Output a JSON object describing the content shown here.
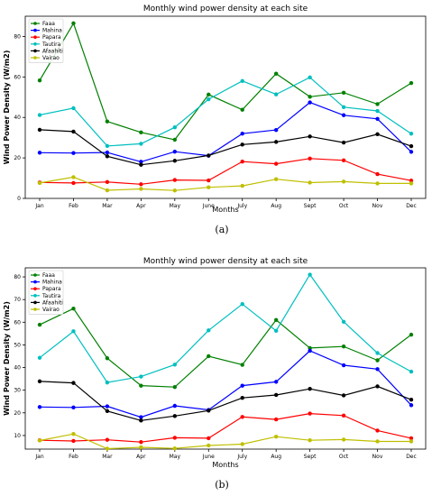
{
  "captions": [
    "(a)",
    "(b)"
  ],
  "chart_data": [
    {
      "type": "line",
      "title": "Monthly wind power density at each site",
      "xlabel": "Months",
      "ylabel": "Wind Power Density (W/m2)",
      "categories": [
        "Jan",
        "Feb",
        "Mar",
        "Apr",
        "May",
        "June",
        "July",
        "Aug",
        "Sept",
        "Oct",
        "Nov",
        "Dec"
      ],
      "ylim": [
        0,
        90
      ],
      "yticks": [
        0,
        20,
        40,
        60,
        80
      ],
      "legend_position": "top-left",
      "grid": false,
      "series": [
        {
          "name": "Faaa",
          "color": "#008000",
          "values": [
            58.3,
            86.5,
            38.0,
            32.6,
            29.0,
            51.3,
            43.8,
            61.6,
            50.2,
            52.2,
            46.6,
            57.0
          ]
        },
        {
          "name": "Mahina",
          "color": "#0000ff",
          "values": [
            22.6,
            22.4,
            22.7,
            18.1,
            23.1,
            21.1,
            32.0,
            33.8,
            47.4,
            41.1,
            39.3,
            23.0
          ]
        },
        {
          "name": "Papara",
          "color": "#ff0000",
          "values": [
            7.9,
            7.6,
            8.1,
            7.0,
            9.1,
            8.9,
            18.2,
            17.1,
            19.7,
            18.8,
            12.0,
            8.8
          ]
        },
        {
          "name": "Tautira",
          "color": "#00bfbf",
          "values": [
            41.2,
            44.6,
            25.9,
            27.0,
            35.1,
            49.0,
            58.0,
            51.4,
            59.8,
            45.1,
            43.2,
            32.0
          ]
        },
        {
          "name": "Afaahiti",
          "color": "#000000",
          "values": [
            33.9,
            33.0,
            20.8,
            16.6,
            18.6,
            21.2,
            26.6,
            27.9,
            30.6,
            27.6,
            31.7,
            25.8
          ]
        },
        {
          "name": "Vairao",
          "color": "#bfbf00",
          "values": [
            7.6,
            10.5,
            4.0,
            4.7,
            3.9,
            5.5,
            6.2,
            9.5,
            7.8,
            8.3,
            7.4,
            7.4
          ]
        }
      ]
    },
    {
      "type": "line",
      "title": "Monthly wind power density at each site",
      "xlabel": "Months",
      "ylabel": "Wind Power Density (W/m2)",
      "categories": [
        "Jan",
        "Feb",
        "Mar",
        "Apr",
        "May",
        "June",
        "July",
        "Aug",
        "Sept",
        "Oct",
        "Nov",
        "Dec"
      ],
      "ylim": [
        4,
        84
      ],
      "yticks": [
        10,
        20,
        30,
        40,
        50,
        60,
        70,
        80
      ],
      "legend_position": "top-left",
      "grid": false,
      "series": [
        {
          "name": "Faaa",
          "color": "#008000",
          "values": [
            58.9,
            66.0,
            44.1,
            32.0,
            31.4,
            45.0,
            41.2,
            61.0,
            48.6,
            49.3,
            43.2,
            54.5
          ]
        },
        {
          "name": "Mahina",
          "color": "#0000ff",
          "values": [
            22.6,
            22.4,
            22.9,
            18.1,
            23.1,
            21.3,
            32.0,
            33.7,
            47.4,
            41.0,
            39.3,
            23.4
          ]
        },
        {
          "name": "Papara",
          "color": "#ff0000",
          "values": [
            7.9,
            7.6,
            8.1,
            7.1,
            9.0,
            8.8,
            18.2,
            17.1,
            19.7,
            18.8,
            12.2,
            8.8
          ]
        },
        {
          "name": "Tautira",
          "color": "#00bfbf",
          "values": [
            44.3,
            56.0,
            33.4,
            36.0,
            41.3,
            56.4,
            68.0,
            56.2,
            81.0,
            60.2,
            46.4,
            38.2
          ]
        },
        {
          "name": "Afaahiti",
          "color": "#000000",
          "values": [
            33.9,
            33.2,
            20.8,
            16.6,
            18.6,
            21.0,
            26.6,
            27.9,
            30.6,
            27.7,
            31.7,
            25.8
          ]
        },
        {
          "name": "Vairao",
          "color": "#bfbf00",
          "values": [
            7.8,
            10.7,
            4.2,
            4.8,
            4.3,
            5.6,
            6.2,
            9.5,
            7.9,
            8.2,
            7.4,
            7.4
          ]
        }
      ]
    }
  ]
}
